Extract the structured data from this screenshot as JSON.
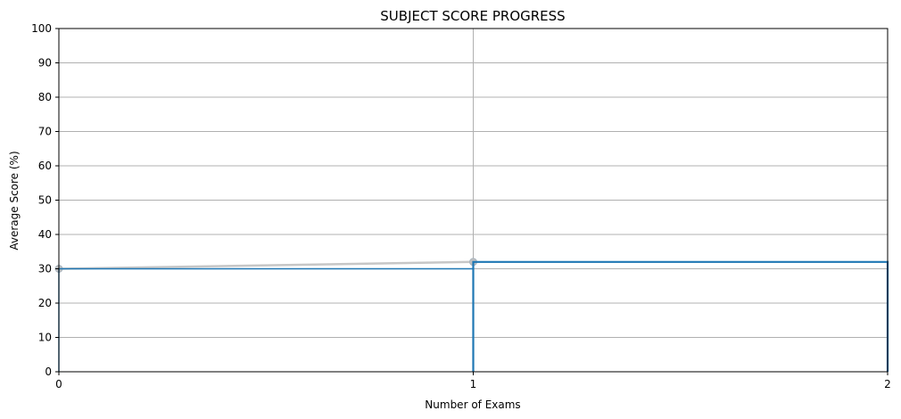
{
  "chart_data": {
    "type": "line",
    "title": "SUBJECT SCORE PROGRESS",
    "xlabel": "Number of Exams",
    "ylabel": "Average Score (%)",
    "xlim": [
      0,
      2
    ],
    "ylim": [
      0,
      100
    ],
    "x_ticks": [
      "0",
      "1",
      "2"
    ],
    "y_ticks": [
      "0",
      "10",
      "20",
      "30",
      "40",
      "50",
      "60",
      "70",
      "80",
      "90",
      "100"
    ],
    "grid": true,
    "series": [
      {
        "kind": "trend",
        "x": [
          0,
          1
        ],
        "y": [
          30,
          32
        ],
        "color": "#c7c7c7"
      },
      {
        "kind": "step-bars",
        "x": [
          0,
          1
        ],
        "y": [
          30,
          32
        ],
        "color": "#1f77b4"
      }
    ]
  }
}
